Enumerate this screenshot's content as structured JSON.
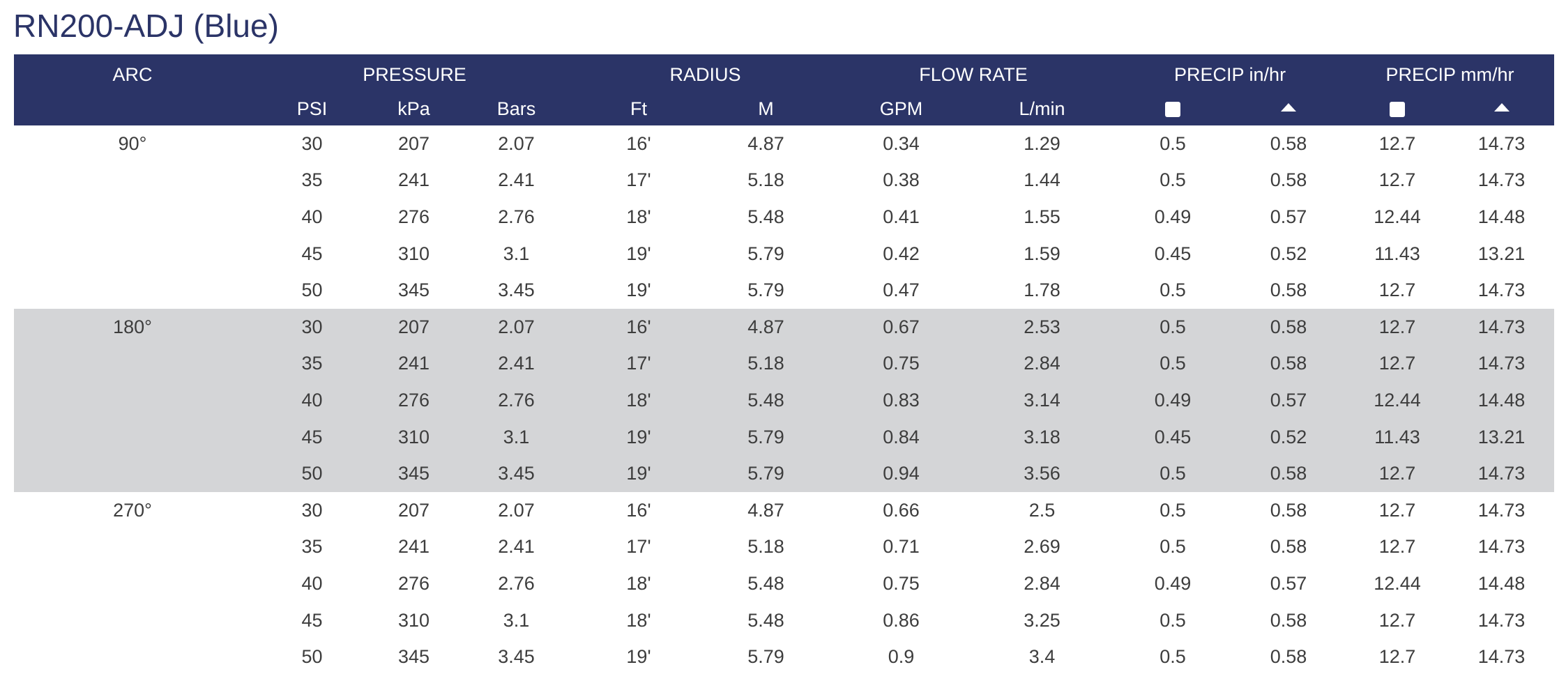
{
  "title": "RN200-ADJ (Blue)",
  "colors": {
    "header_bg": "#2b3467",
    "header_text": "#ffffff",
    "title_text": "#2b3467",
    "shaded_band": "#d4d5d7",
    "body_text": "#3d3d3d"
  },
  "header": {
    "groups": {
      "arc": "ARC",
      "pressure": "PRESSURE",
      "radius": "RADIUS",
      "flow_rate": "FLOW RATE",
      "precip_in": "PRECIP in/hr",
      "precip_mm": "PRECIP mm/hr"
    },
    "sub": {
      "psi": "PSI",
      "kpa": "kPa",
      "bars": "Bars",
      "ft": "Ft",
      "m": "M",
      "gpm": "GPM",
      "lmin": "L/min"
    },
    "icons": {
      "square": "square-icon",
      "triangle": "triangle-icon"
    }
  },
  "rows": [
    {
      "arc": "90°",
      "psi": "30",
      "kpa": "207",
      "bars": "2.07",
      "ft": "16'",
      "m": "4.87",
      "gpm": "0.34",
      "lmin": "1.29",
      "in_sq": "0.5",
      "in_tri": "0.58",
      "mm_sq": "12.7",
      "mm_tri": "14.73"
    },
    {
      "arc": "",
      "psi": "35",
      "kpa": "241",
      "bars": "2.41",
      "ft": "17'",
      "m": "5.18",
      "gpm": "0.38",
      "lmin": "1.44",
      "in_sq": "0.5",
      "in_tri": "0.58",
      "mm_sq": "12.7",
      "mm_tri": "14.73"
    },
    {
      "arc": "",
      "psi": "40",
      "kpa": "276",
      "bars": "2.76",
      "ft": "18'",
      "m": "5.48",
      "gpm": "0.41",
      "lmin": "1.55",
      "in_sq": "0.49",
      "in_tri": "0.57",
      "mm_sq": "12.44",
      "mm_tri": "14.48"
    },
    {
      "arc": "",
      "psi": "45",
      "kpa": "310",
      "bars": "3.1",
      "ft": "19'",
      "m": "5.79",
      "gpm": "0.42",
      "lmin": "1.59",
      "in_sq": "0.45",
      "in_tri": "0.52",
      "mm_sq": "11.43",
      "mm_tri": "13.21"
    },
    {
      "arc": "",
      "psi": "50",
      "kpa": "345",
      "bars": "3.45",
      "ft": "19'",
      "m": "5.79",
      "gpm": "0.47",
      "lmin": "1.78",
      "in_sq": "0.5",
      "in_tri": "0.58",
      "mm_sq": "12.7",
      "mm_tri": "14.73"
    },
    {
      "arc": "180°",
      "psi": "30",
      "kpa": "207",
      "bars": "2.07",
      "ft": "16'",
      "m": "4.87",
      "gpm": "0.67",
      "lmin": "2.53",
      "in_sq": "0.5",
      "in_tri": "0.58",
      "mm_sq": "12.7",
      "mm_tri": "14.73"
    },
    {
      "arc": "",
      "psi": "35",
      "kpa": "241",
      "bars": "2.41",
      "ft": "17'",
      "m": "5.18",
      "gpm": "0.75",
      "lmin": "2.84",
      "in_sq": "0.5",
      "in_tri": "0.58",
      "mm_sq": "12.7",
      "mm_tri": "14.73"
    },
    {
      "arc": "",
      "psi": "40",
      "kpa": "276",
      "bars": "2.76",
      "ft": "18'",
      "m": "5.48",
      "gpm": "0.83",
      "lmin": "3.14",
      "in_sq": "0.49",
      "in_tri": "0.57",
      "mm_sq": "12.44",
      "mm_tri": "14.48"
    },
    {
      "arc": "",
      "psi": "45",
      "kpa": "310",
      "bars": "3.1",
      "ft": "19'",
      "m": "5.79",
      "gpm": "0.84",
      "lmin": "3.18",
      "in_sq": "0.45",
      "in_tri": "0.52",
      "mm_sq": "11.43",
      "mm_tri": "13.21"
    },
    {
      "arc": "",
      "psi": "50",
      "kpa": "345",
      "bars": "3.45",
      "ft": "19'",
      "m": "5.79",
      "gpm": "0.94",
      "lmin": "3.56",
      "in_sq": "0.5",
      "in_tri": "0.58",
      "mm_sq": "12.7",
      "mm_tri": "14.73"
    },
    {
      "arc": "270°",
      "psi": "30",
      "kpa": "207",
      "bars": "2.07",
      "ft": "16'",
      "m": "4.87",
      "gpm": "0.66",
      "lmin": "2.5",
      "in_sq": "0.5",
      "in_tri": "0.58",
      "mm_sq": "12.7",
      "mm_tri": "14.73"
    },
    {
      "arc": "",
      "psi": "35",
      "kpa": "241",
      "bars": "2.41",
      "ft": "17'",
      "m": "5.18",
      "gpm": "0.71",
      "lmin": "2.69",
      "in_sq": "0.5",
      "in_tri": "0.58",
      "mm_sq": "12.7",
      "mm_tri": "14.73"
    },
    {
      "arc": "",
      "psi": "40",
      "kpa": "276",
      "bars": "2.76",
      "ft": "18'",
      "m": "5.48",
      "gpm": "0.75",
      "lmin": "2.84",
      "in_sq": "0.49",
      "in_tri": "0.57",
      "mm_sq": "12.44",
      "mm_tri": "14.48"
    },
    {
      "arc": "",
      "psi": "45",
      "kpa": "310",
      "bars": "3.1",
      "ft": "18'",
      "m": "5.48",
      "gpm": "0.86",
      "lmin": "3.25",
      "in_sq": "0.5",
      "in_tri": "0.58",
      "mm_sq": "12.7",
      "mm_tri": "14.73"
    },
    {
      "arc": "",
      "psi": "50",
      "kpa": "345",
      "bars": "3.45",
      "ft": "19'",
      "m": "5.79",
      "gpm": "0.9",
      "lmin": "3.4",
      "in_sq": "0.5",
      "in_tri": "0.58",
      "mm_sq": "12.7",
      "mm_tri": "14.73"
    }
  ],
  "shaded_rows": [
    5,
    6,
    7,
    8,
    9
  ]
}
